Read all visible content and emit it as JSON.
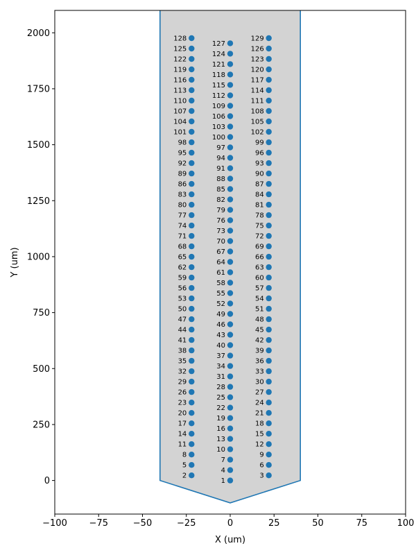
{
  "chart_data": {
    "type": "scatter",
    "title": "",
    "xlabel": "X (um)",
    "ylabel": "Y (um)",
    "xlim": [
      -100,
      100
    ],
    "ylim": [
      -150,
      2100
    ],
    "xticks": [
      -100,
      -75,
      -50,
      -25,
      0,
      25,
      50,
      75,
      100
    ],
    "xtick_labels": [
      "−100",
      "−75",
      "−50",
      "−25",
      "0",
      "25",
      "50",
      "75",
      "100"
    ],
    "yticks": [
      0,
      250,
      500,
      750,
      1000,
      1250,
      1500,
      1750,
      2000
    ],
    "ytick_labels": [
      "0",
      "250",
      "500",
      "750",
      "1000",
      "1250",
      "1500",
      "1750",
      "2000"
    ],
    "grid": false,
    "colors": {
      "probe_fill": "#d3d3d3",
      "probe_outline": "#1f77b4",
      "contacts": "#1f77b4"
    },
    "probe_outline": {
      "x": [
        -40,
        -40,
        0,
        40,
        40
      ],
      "y": [
        2100,
        0,
        -100,
        0,
        2100
      ]
    },
    "channels": {
      "columns_x": [
        -22,
        0,
        22
      ],
      "first_channel_y": [
        23,
        0,
        23
      ],
      "pitch_um": 46.5,
      "channels_per_column": 43,
      "label_start": [
        2,
        1,
        3
      ],
      "label_step": 3
    }
  }
}
